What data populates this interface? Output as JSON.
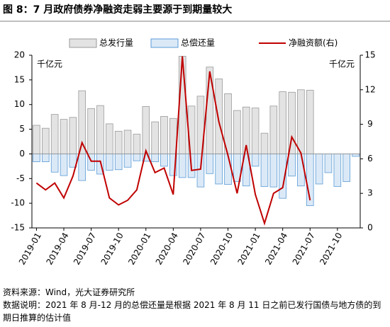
{
  "chart_data": {
    "type": "bar_line",
    "title": "图 8：7 月政府债券净融资走弱主要源于到期量较大",
    "y_label": "千亿元",
    "y2_label": "千亿元",
    "categories": [
      "2019-01",
      null,
      null,
      "2019-04",
      null,
      null,
      "2019-07",
      null,
      null,
      "2019-10",
      null,
      null,
      "2020-01",
      null,
      null,
      "2020-04",
      null,
      null,
      "2020-07",
      null,
      null,
      "2020-10",
      null,
      null,
      "2021-01",
      null,
      null,
      "2021-04",
      null,
      null,
      "2021-07",
      null,
      null,
      "2021-10",
      null,
      null
    ],
    "ylim": [
      -15,
      20
    ],
    "yticks": [
      -15,
      -10,
      -5,
      0,
      5,
      10,
      15,
      20
    ],
    "y2lim": [
      0,
      15
    ],
    "y2ticks": [
      0,
      3,
      6,
      9,
      12,
      15
    ],
    "series": [
      {
        "name": "总发行量",
        "color": "#e3e3e3",
        "stroke": "#9a9a9a",
        "values": [
          5.8,
          5.2,
          8.0,
          7.0,
          7.4,
          12.8,
          9.2,
          9.8,
          6.1,
          4.6,
          4.8,
          4.0,
          9.6,
          6.5,
          7.6,
          7.2,
          19.8,
          9.7,
          11.7,
          17.6,
          15.2,
          12.2,
          8.8,
          9.5,
          9.3,
          4.2,
          9.7,
          12.6,
          12.5,
          13.0,
          12.9,
          null,
          null,
          null,
          null,
          null
        ]
      },
      {
        "name": "总偿还量",
        "color": "#dbe9f7",
        "stroke": "#5b9bd5",
        "values": [
          -1.6,
          -1.6,
          -3.7,
          -4.4,
          -2.7,
          -5.4,
          -3.3,
          -4.1,
          -3.3,
          -3.2,
          -2.7,
          -1.4,
          -1.5,
          -1.6,
          -2.5,
          -4.4,
          -4.8,
          -4.8,
          -6.7,
          -4.0,
          -6.1,
          -6.2,
          -5.6,
          -6.5,
          -2.5,
          -6.6,
          -6.7,
          -9.0,
          -4.5,
          -6.5,
          -10.5,
          -6.1,
          -3.8,
          -6.6,
          -5.6,
          -0.5
        ]
      },
      {
        "name": "净融资额(右)",
        "color": "#c00000",
        "axis": "y2",
        "values": [
          3.9,
          3.3,
          3.9,
          2.6,
          4.5,
          7.4,
          5.8,
          5.8,
          2.6,
          2.0,
          2.4,
          3.3,
          6.7,
          4.8,
          5.2,
          2.9,
          14.9,
          5.0,
          5.1,
          13.6,
          9.2,
          6.3,
          3.0,
          7.2,
          2.9,
          0.4,
          3.0,
          3.5,
          7.9,
          6.5,
          2.4,
          null,
          null,
          null,
          null,
          null
        ]
      }
    ],
    "notes": [
      "资料来源：Wind，光大证券研究所",
      "数据说明：2021 年 8 月-12 月的总偿还量是根据 2021 年 8 月 11 日之前已发行国债与地方债的到期日推算的估计值"
    ]
  }
}
